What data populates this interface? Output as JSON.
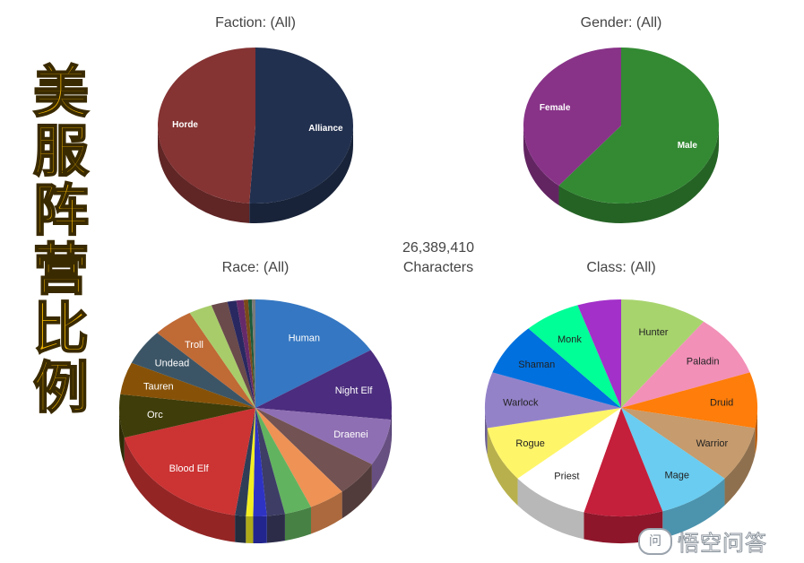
{
  "side_title": [
    "美",
    "服",
    "阵",
    "营",
    "比",
    "例"
  ],
  "center_label": {
    "count": "26,389,410",
    "unit": "Characters"
  },
  "watermark": {
    "text": "悟空问答",
    "logo": "问"
  },
  "chart_data": [
    {
      "type": "pie",
      "title": "Faction: (All)",
      "slices": [
        {
          "label": "Alliance",
          "value": 51,
          "color": "#22304f"
        },
        {
          "label": "Horde",
          "value": 49,
          "color": "#853333"
        }
      ]
    },
    {
      "type": "pie",
      "title": "Gender: (All)",
      "slices": [
        {
          "label": "Male",
          "value": 61,
          "color": "#338a33"
        },
        {
          "label": "Female",
          "value": 39,
          "color": "#883388"
        }
      ]
    },
    {
      "type": "pie",
      "title": "Race: (All)",
      "slices": [
        {
          "label": "Human",
          "value": 15.0,
          "color": "#3577c2"
        },
        {
          "label": "Night Elf",
          "value": 10.0,
          "color": "#4b2c7e"
        },
        {
          "label": "Draenei",
          "value": 6.5,
          "color": "#8f6fb3"
        },
        {
          "label": "",
          "value": 5.0,
          "color": "#725252"
        },
        {
          "label": "",
          "value": 4.0,
          "color": "#ee9255"
        },
        {
          "label": "",
          "value": 3.0,
          "color": "#62b35f"
        },
        {
          "label": "",
          "value": 2.0,
          "color": "#3d3d66"
        },
        {
          "label": "",
          "value": 1.5,
          "color": "#2f33c4"
        },
        {
          "label": "",
          "value": 0.8,
          "color": "#f2ee22"
        },
        {
          "label": "",
          "value": 1.2,
          "color": "#2f3e56"
        },
        {
          "label": "Blood Elf",
          "value": 17.0,
          "color": "#cc3333"
        },
        {
          "label": "Orc",
          "value": 6.0,
          "color": "#3f3d0a"
        },
        {
          "label": "Tauren",
          "value": 4.5,
          "color": "#875208"
        },
        {
          "label": "Undead",
          "value": 5.0,
          "color": "#3c5566"
        },
        {
          "label": "Troll",
          "value": 4.5,
          "color": "#c06a36"
        },
        {
          "label": "",
          "value": 2.6,
          "color": "#a8cc6a"
        },
        {
          "label": "",
          "value": 1.8,
          "color": "#6a4a4a"
        },
        {
          "label": "",
          "value": 1.0,
          "color": "#2a2860"
        },
        {
          "label": "",
          "value": 0.8,
          "color": "#662a6a"
        },
        {
          "label": "",
          "value": 0.5,
          "color": "#7a4a1a"
        },
        {
          "label": "",
          "value": 0.4,
          "color": "#1a5a3a"
        },
        {
          "label": "",
          "value": 0.4,
          "color": "#7a7a7a"
        }
      ]
    },
    {
      "type": "pie",
      "title": "Class: (All)",
      "slices": [
        {
          "label": "Hunter",
          "value": 10.0,
          "color": "#a8d46e"
        },
        {
          "label": "Paladin",
          "value": 9.0,
          "color": "#f290b8"
        },
        {
          "label": "Druid",
          "value": 8.0,
          "color": "#ff7d0a"
        },
        {
          "label": "Warrior",
          "value": 8.0,
          "color": "#c69b6d"
        },
        {
          "label": "Mage",
          "value": 8.5,
          "color": "#69ccf0"
        },
        {
          "label": "",
          "value": 9.0,
          "color": "#c41f3b"
        },
        {
          "label": "Priest",
          "value": 9.0,
          "color": "#ffffff"
        },
        {
          "label": "Rogue",
          "value": 8.0,
          "color": "#fff569"
        },
        {
          "label": "Warlock",
          "value": 8.0,
          "color": "#9482c9"
        },
        {
          "label": "Shaman",
          "value": 7.5,
          "color": "#0070de"
        },
        {
          "label": "Monk",
          "value": 6.5,
          "color": "#00ff96"
        },
        {
          "label": "",
          "value": 5.0,
          "color": "#a330c9"
        }
      ]
    }
  ]
}
